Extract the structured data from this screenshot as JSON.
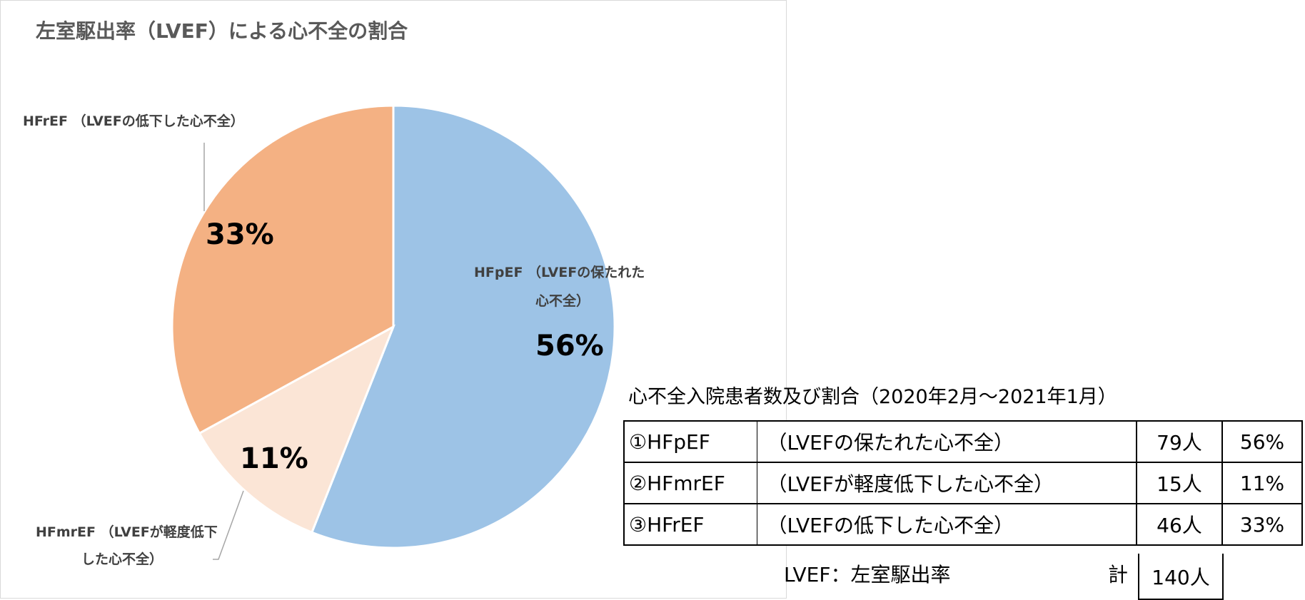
{
  "chart_data": {
    "type": "pie",
    "title": "左室駆出率（LVEF）による心不全の割合",
    "slices": [
      {
        "name": "HFpEF （LVEFの保たれた心不全）",
        "label_line1": "HFpEF （LVEFの保たれた",
        "label_line2": "心不全）",
        "value": 56,
        "percent_label": "56%",
        "color": "#9dc3e6"
      },
      {
        "name": "HFmrEF （LVEFが軽度低下した心不全）",
        "label_line1": "HFmrEF （LVEFが軽度低下",
        "label_line2": "した心不全）",
        "value": 11,
        "percent_label": "11%",
        "color": "#fbe5d6"
      },
      {
        "name": "HFrEF （LVEFの低下した心不全）",
        "label_line1": "HFrEF （LVEFの低下した心不全）",
        "label_line2": "",
        "value": 33,
        "percent_label": "33%",
        "color": "#f4b183"
      }
    ]
  },
  "table": {
    "title": "心不全入院患者数及び割合（2020年2月～2021年1月）",
    "rows": [
      {
        "name": "①HFpEF",
        "desc": "（LVEFの保たれた心不全）",
        "count": "79人",
        "pct": "56%"
      },
      {
        "name": "②HFmrEF",
        "desc": "（LVEFが軽度低下した心不全）",
        "count": "15人",
        "pct": "11%"
      },
      {
        "name": "③HFrEF",
        "desc": "（LVEFの低下した心不全）",
        "count": "46人",
        "pct": "33%"
      }
    ],
    "footer_note": "LVEF：左室駆出率",
    "total_label": "計",
    "total_value": "140人"
  }
}
